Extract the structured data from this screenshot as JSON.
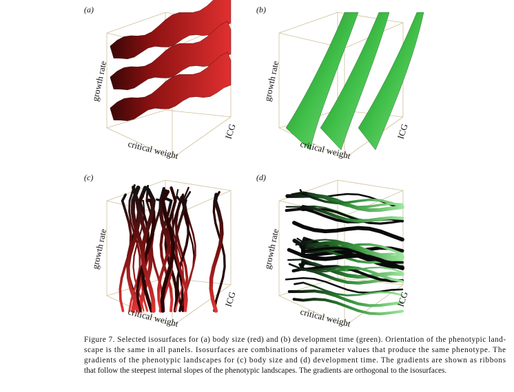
{
  "panels": [
    {
      "label": "(a)",
      "y_axis": "growth rate",
      "x_axis": "critical weight",
      "z_axis": "ICG"
    },
    {
      "label": "(b)",
      "y_axis": "growth rate",
      "x_axis": "critical weight",
      "z_axis": "ICG"
    },
    {
      "label": "(c)",
      "y_axis": "growth rate",
      "x_axis": "critical weight",
      "z_axis": "ICG"
    },
    {
      "label": "(d)",
      "y_axis": "growth rate",
      "x_axis": "critical weight",
      "z_axis": "ICG"
    }
  ],
  "caption": {
    "lines": [
      "Figure 7. Selected isosurfaces for (a) body size (red) and (b) development time (green). Orientation of the phenotypic land-",
      "scape is the same in all panels. Isosurfaces are combinations of parameter values that produce the same phenotype. The",
      "gradients of the phenotypic landscapes for (c) body size and (d) development time. The gradients are shown as ribbons",
      "that follow the steepest internal slopes of the phenotypic landscapes. The gradients are orthogonal to the isosurfaces."
    ]
  }
}
